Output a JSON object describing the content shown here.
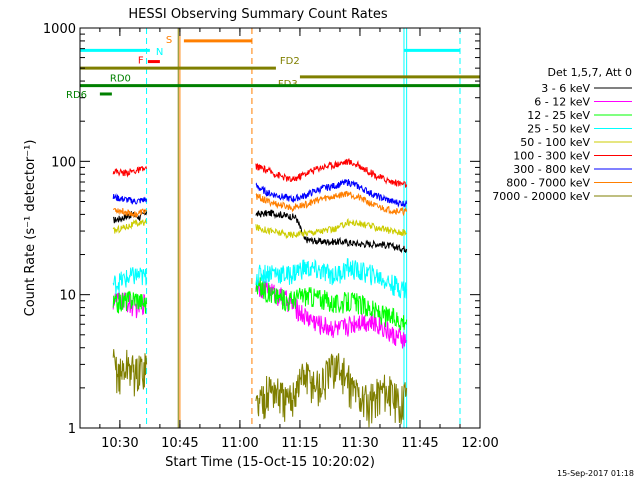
{
  "chart_data": {
    "type": "line",
    "title": "HESSI Observing Summary Count Rates",
    "xlabel": "Start Time (15-Oct-15 10:20:02)",
    "ylabel": "Count Rate (s⁻¹ detector⁻¹)",
    "y_scale": "log",
    "xlim": [
      "10:20:02",
      "12:00"
    ],
    "ylim": [
      1,
      1000
    ],
    "x_ticks": [
      "10:30",
      "10:45",
      "11:00",
      "11:15",
      "11:30",
      "11:45",
      "12:00"
    ],
    "y_ticks": [
      "1",
      "10",
      "100",
      "1000"
    ],
    "legend_title": "Det 1,5,7, Att 0",
    "legend_position": "right",
    "footer_timestamp": "15-Sep-2017 01:18",
    "series": [
      {
        "name": "3 - 6 keV",
        "color": "#000000",
        "segments": [
          {
            "x": [
              "10:28:20",
              "10:31",
              "10:33",
              "10:35",
              "10:36:40"
            ],
            "y": [
              36,
              38,
              40,
              38,
              42
            ]
          },
          {
            "x": [
              "11:04:00",
              "11:08",
              "11:12",
              "11:14",
              "11:16",
              "11:20",
              "11:25",
              "11:30",
              "11:35",
              "11:38",
              "11:41:40"
            ],
            "y": [
              40,
              41,
              39,
              38,
              26,
              25,
              25,
              24,
              24,
              23,
              22
            ]
          }
        ]
      },
      {
        "name": "6 - 12 keV",
        "color": "#ff00ff",
        "segments": [
          {
            "x": [
              "10:28:20",
              "10:31",
              "10:34",
              "10:36:40"
            ],
            "y": [
              9,
              9,
              8,
              9
            ]
          },
          {
            "x": [
              "11:04:00",
              "11:08",
              "11:12",
              "11:16",
              "11:20",
              "11:25",
              "11:30",
              "11:35",
              "11:38",
              "11:41:40"
            ],
            "y": [
              12,
              10.5,
              9,
              7,
              6,
              5.5,
              6.5,
              6,
              5,
              4.5
            ]
          }
        ]
      },
      {
        "name": "12 - 25 keV",
        "color": "#00ff00",
        "segments": [
          {
            "x": [
              "10:28:20",
              "10:31",
              "10:34",
              "10:36:40"
            ],
            "y": [
              8.5,
              9,
              9.5,
              8.5
            ]
          },
          {
            "x": [
              "11:04:00",
              "11:08",
              "11:12",
              "11:16",
              "11:20",
              "11:24",
              "11:28",
              "11:32",
              "11:36",
              "11:40",
              "11:41:40"
            ],
            "y": [
              12,
              10,
              9,
              10,
              9.5,
              8.5,
              9,
              8,
              7,
              6.5,
              6.5
            ]
          }
        ]
      },
      {
        "name": "25 - 50 keV",
        "color": "#00ffff",
        "segments": [
          {
            "x": [
              "10:28:20",
              "10:31",
              "10:34",
              "10:36:40"
            ],
            "y": [
              12,
              13,
              14,
              13.5
            ]
          },
          {
            "x": [
              "11:04:00",
              "11:08",
              "11:12",
              "11:16",
              "11:20",
              "11:24",
              "11:27",
              "11:30",
              "11:34",
              "11:38",
              "11:41:40"
            ],
            "y": [
              14,
              15,
              14,
              16,
              15,
              14,
              16,
              15,
              14,
              12,
              11
            ]
          }
        ]
      },
      {
        "name": "50 - 100 keV",
        "color": "#cccc00",
        "segments": [
          {
            "x": [
              "10:28:20",
              "10:31",
              "10:34",
              "10:36:40"
            ],
            "y": [
              30,
              32,
              34,
              35
            ]
          },
          {
            "x": [
              "11:04:00",
              "11:08",
              "11:12",
              "11:16",
              "11:20",
              "11:24",
              "11:27",
              "11:30",
              "11:34",
              "11:38",
              "11:41:40"
            ],
            "y": [
              32,
              30,
              28,
              29,
              30,
              31,
              35,
              34,
              32,
              30,
              29
            ]
          }
        ]
      },
      {
        "name": "100 - 300 keV",
        "color": "#ff0000",
        "segments": [
          {
            "x": [
              "10:28:20",
              "10:31",
              "10:34",
              "10:36:40"
            ],
            "y": [
              85,
              82,
              85,
              88
            ]
          },
          {
            "x": [
              "11:04:00",
              "11:07",
              "11:10",
              "11:13",
              "11:16",
              "11:20",
              "11:24",
              "11:27",
              "11:30",
              "11:34",
              "11:38",
              "11:41:40"
            ],
            "y": [
              92,
              85,
              78,
              72,
              80,
              90,
              95,
              100,
              92,
              78,
              70,
              67
            ]
          }
        ]
      },
      {
        "name": "300 - 800 keV",
        "color": "#0000ff",
        "segments": [
          {
            "x": [
              "10:28:20",
              "10:31",
              "10:34",
              "10:36:40"
            ],
            "y": [
              54,
              52,
              50,
              52
            ]
          },
          {
            "x": [
              "11:04:00",
              "11:07",
              "11:10",
              "11:13",
              "11:16",
              "11:20",
              "11:24",
              "11:27",
              "11:30",
              "11:34",
              "11:38",
              "11:41:40"
            ],
            "y": [
              65,
              58,
              55,
              52,
              55,
              62,
              66,
              70,
              64,
              55,
              50,
              48
            ]
          }
        ]
      },
      {
        "name": "800 - 7000 keV",
        "color": "#ff7f00",
        "segments": [
          {
            "x": [
              "10:28:20",
              "10:31",
              "10:34",
              "10:36:40"
            ],
            "y": [
              44,
              42,
              40,
              43
            ]
          },
          {
            "x": [
              "11:04:00",
              "11:07",
              "11:10",
              "11:13",
              "11:16",
              "11:20",
              "11:24",
              "11:27",
              "11:30",
              "11:34",
              "11:38",
              "11:41:40"
            ],
            "y": [
              55,
              50,
              47,
              45,
              47,
              52,
              55,
              58,
              53,
              46,
              43,
              42
            ]
          }
        ]
      },
      {
        "name": "7000 - 20000 keV",
        "color": "#7f7f00",
        "segments": [
          {
            "x": [
              "10:28:20",
              "10:30",
              "10:32",
              "10:34",
              "10:36:40"
            ],
            "y": [
              3,
              2.5,
              3,
              2.5,
              3
            ]
          },
          {
            "x": [
              "11:04:00",
              "11:08",
              "11:12",
              "11:16",
              "11:20",
              "11:24",
              "11:28",
              "11:32",
              "11:36",
              "11:40",
              "11:41:40"
            ],
            "y": [
              1.5,
              2,
              1.5,
              2.5,
              2,
              3,
              2,
              1.5,
              2,
              1.5,
              2
            ]
          }
        ]
      }
    ],
    "vlines": [
      {
        "x": "10:20:02",
        "color": "#00ffff",
        "style": "solid"
      },
      {
        "x": "10:36:40",
        "color": "#00ffff",
        "style": "dash"
      },
      {
        "x": "10:45:00",
        "color": "#ff7f00",
        "style": "solid"
      },
      {
        "x": "10:44:35",
        "color": "#7f7f00",
        "style": "solid"
      },
      {
        "x": "11:03:00",
        "color": "#ff7f00",
        "style": "dash"
      },
      {
        "x": "11:41:00",
        "color": "#00ffff",
        "style": "solid"
      },
      {
        "x": "11:41:40",
        "color": "#00ffff",
        "style": "solid"
      },
      {
        "x": "11:55:00",
        "color": "#00ffff",
        "style": "dash"
      }
    ],
    "flag_bars": [
      {
        "label": "",
        "color": "#00ffff",
        "segments": [
          [
            "10:20:02",
            "10:37:30"
          ],
          [
            "11:41:00",
            "11:55:00"
          ]
        ],
        "level": 680
      },
      {
        "label": "S",
        "color": "#ff7f00",
        "segments": [
          [
            "10:46:00",
            "11:03:00"
          ]
        ],
        "level": 800
      },
      {
        "label": "N",
        "color": "#00ffff",
        "segments": [],
        "level": 650
      },
      {
        "label": "F",
        "color": "#ff0000",
        "segments": [
          [
            "10:37:00",
            "10:40:00"
          ]
        ],
        "level": 560
      },
      {
        "label": "FD2",
        "color": "#7f7f00",
        "segments": [
          [
            "10:20:02",
            "11:09:00"
          ]
        ],
        "level": 500
      },
      {
        "label": "FD3",
        "color": "#7f7f00",
        "segments": [
          [
            "11:15:00",
            "12:00:00"
          ]
        ],
        "level": 430
      },
      {
        "label": "RD0",
        "color": "#008000",
        "segments": [
          [
            "10:20:02",
            "12:00:00"
          ]
        ],
        "level": 370
      },
      {
        "label": "RD6",
        "color": "#008000",
        "segments": [
          [
            "10:25:00",
            "10:28:00"
          ]
        ],
        "level": 320
      }
    ]
  }
}
